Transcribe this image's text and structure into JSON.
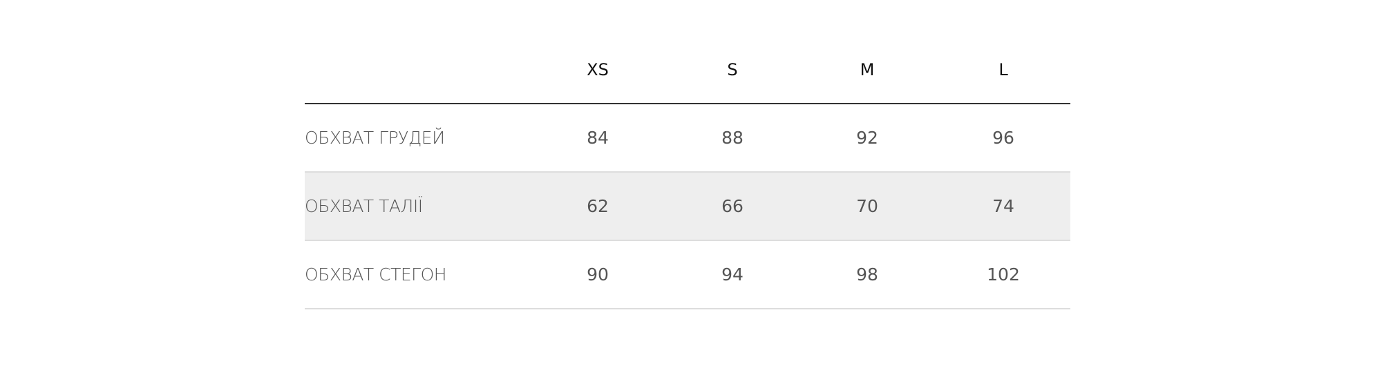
{
  "table": {
    "columns": [
      "XS",
      "S",
      "M",
      "L"
    ],
    "rows": [
      {
        "label": "ОБХВАТ ГРУДЕЙ",
        "values": [
          "84",
          "88",
          "92",
          "96"
        ]
      },
      {
        "label": "ОБХВАТ ТАЛІЇ",
        "values": [
          "62",
          "66",
          "70",
          "74"
        ]
      },
      {
        "label": "ОБХВАТ СТЕГОН",
        "values": [
          "90",
          "94",
          "98",
          "102"
        ]
      }
    ],
    "colors": {
      "header_rule": "#333333",
      "row_rule": "#dddddd",
      "alt_row_bg": "#eeeeee",
      "text": "#555555"
    }
  }
}
